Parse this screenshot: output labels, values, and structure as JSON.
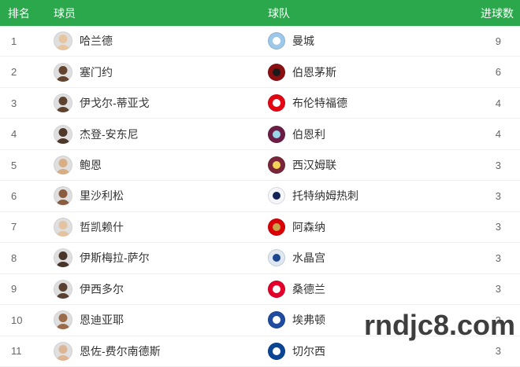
{
  "theme": {
    "header_bg": "#2aa84b",
    "row_border": "#f0f0f0",
    "rank_color": "#666666",
    "goals_color": "#666666",
    "name_color": "#333333"
  },
  "header": {
    "rank": "排名",
    "player": "球员",
    "team": "球队",
    "goals": "进球数"
  },
  "watermark": {
    "text": "rndjc8.com",
    "color": "#3e3e3e"
  },
  "rows": [
    {
      "rank": 1,
      "player": "哈兰德",
      "team": "曼城",
      "goals": 9,
      "avatar_tone": "#e6c5a0",
      "badge": {
        "primary": "#9ec8e9",
        "secondary": "#ffffff"
      }
    },
    {
      "rank": 2,
      "player": "塞门约",
      "team": "伯恩茅斯",
      "goals": 6,
      "avatar_tone": "#63452f",
      "badge": {
        "primary": "#8b0f12",
        "secondary": "#1a1a1a"
      }
    },
    {
      "rank": 3,
      "player": "伊戈尔-蒂亚戈",
      "team": "布伦特福德",
      "goals": 4,
      "avatar_tone": "#5d4330",
      "badge": {
        "primary": "#e30613",
        "secondary": "#ffffff"
      }
    },
    {
      "rank": 4,
      "player": "杰登-安东尼",
      "team": "伯恩利",
      "goals": 4,
      "avatar_tone": "#4e382a",
      "badge": {
        "primary": "#6c1d45",
        "secondary": "#99d6ea"
      }
    },
    {
      "rank": 5,
      "player": "鲍恩",
      "team": "西汉姆联",
      "goals": 3,
      "avatar_tone": "#d8ae85",
      "badge": {
        "primary": "#7a263a",
        "secondary": "#f3d459"
      }
    },
    {
      "rank": 6,
      "player": "里沙利松",
      "team": "托特纳姆热刺",
      "goals": 3,
      "avatar_tone": "#8a5d41",
      "badge": {
        "primary": "#f4f6fa",
        "secondary": "#132257"
      }
    },
    {
      "rank": 7,
      "player": "哲凯赖什",
      "team": "阿森纳",
      "goals": 3,
      "avatar_tone": "#e3c3a2",
      "badge": {
        "primary": "#db0007",
        "secondary": "#c8a44a"
      }
    },
    {
      "rank": 8,
      "player": "伊斯梅拉-萨尔",
      "team": "水晶宫",
      "goals": 3,
      "avatar_tone": "#49342a",
      "badge": {
        "primary": "#dfe7f2",
        "secondary": "#1b458f"
      }
    },
    {
      "rank": 9,
      "player": "伊西多尔",
      "team": "桑德兰",
      "goals": 3,
      "avatar_tone": "#5a4030",
      "badge": {
        "primary": "#e4002b",
        "secondary": "#ffffff"
      }
    },
    {
      "rank": 10,
      "player": "恩迪亚耶",
      "team": "埃弗顿",
      "goals": 3,
      "avatar_tone": "#9c6b4a",
      "badge": {
        "primary": "#1f4ba0",
        "secondary": "#ffffff"
      }
    },
    {
      "rank": 11,
      "player": "恩佐-费尔南德斯",
      "team": "切尔西",
      "goals": 3,
      "avatar_tone": "#ddb795",
      "badge": {
        "primary": "#0a4595",
        "secondary": "#ffffff"
      }
    }
  ]
}
